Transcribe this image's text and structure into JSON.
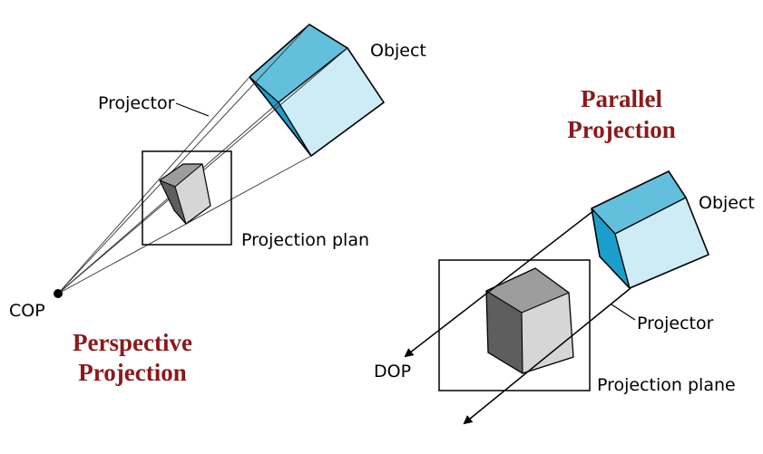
{
  "colors": {
    "title": "#8b1a1a",
    "cube_top": "#62c0dc",
    "cube_front": "#cdecf5",
    "cube_side": "#1a9fcc",
    "proj_front": "#d6d6d6",
    "proj_top": "#9c9c9c",
    "proj_side": "#5e5e5e",
    "line": "#000000"
  },
  "perspective": {
    "title_line1": "Perspective",
    "title_line2": "Projection",
    "label_object": "Object",
    "label_projector": "Projector",
    "label_plane": "Projection plan",
    "label_cop": "COP"
  },
  "parallel": {
    "title_line1": "Parallel",
    "title_line2": "Projection",
    "label_object": "Object",
    "label_projector": "Projector",
    "label_plane": "Projection plane",
    "label_dop": "DOP"
  }
}
